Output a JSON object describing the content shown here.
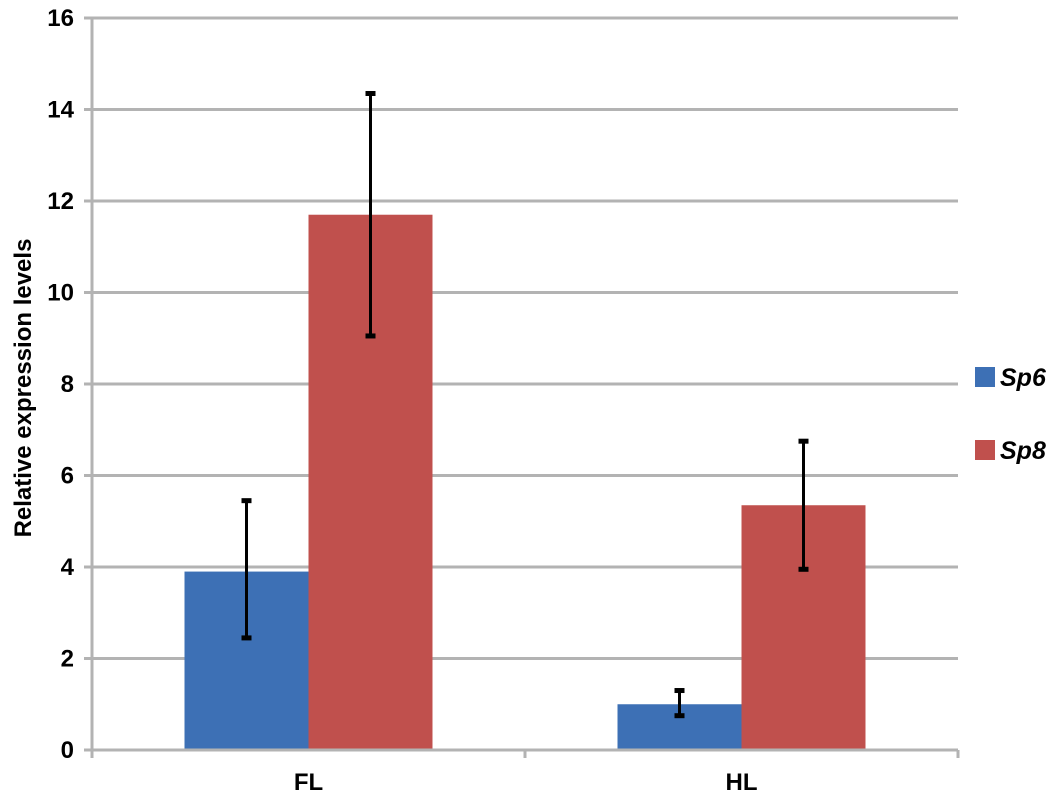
{
  "chart_data": {
    "type": "bar",
    "title": "",
    "xlabel": "",
    "ylabel": "Relative expression levels",
    "ylim": [
      0,
      16
    ],
    "yticks": [
      0,
      2,
      4,
      6,
      8,
      10,
      12,
      14,
      16
    ],
    "grid": "horizontal",
    "legend_position": "right",
    "categories": [
      "FL",
      "HL"
    ],
    "series": [
      {
        "name": "Sp6",
        "color": "#3d70b5",
        "values": [
          3.9,
          1.0
        ],
        "error_low": [
          2.45,
          0.75
        ],
        "error_high": [
          5.45,
          1.3
        ]
      },
      {
        "name": "Sp8",
        "color": "#c0504d",
        "values": [
          11.7,
          5.35
        ],
        "error_low": [
          9.05,
          3.95
        ],
        "error_high": [
          14.35,
          6.75
        ]
      }
    ]
  }
}
